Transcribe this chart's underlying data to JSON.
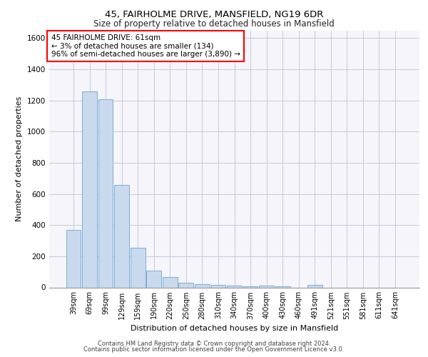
{
  "title1": "45, FAIRHOLME DRIVE, MANSFIELD, NG19 6DR",
  "title2": "Size of property relative to detached houses in Mansfield",
  "xlabel": "Distribution of detached houses by size in Mansfield",
  "ylabel": "Number of detached properties",
  "categories": [
    "39sqm",
    "69sqm",
    "99sqm",
    "129sqm",
    "159sqm",
    "190sqm",
    "220sqm",
    "250sqm",
    "280sqm",
    "310sqm",
    "340sqm",
    "370sqm",
    "400sqm",
    "430sqm",
    "460sqm",
    "491sqm",
    "521sqm",
    "551sqm",
    "581sqm",
    "611sqm",
    "641sqm"
  ],
  "values": [
    370,
    1260,
    1210,
    660,
    255,
    110,
    65,
    30,
    20,
    15,
    10,
    8,
    10,
    5,
    0,
    15,
    0,
    0,
    0,
    0,
    0
  ],
  "bar_color": "#c9d9ee",
  "bar_edge_color": "#7bafd4",
  "annotation_line1": "45 FAIRHOLME DRIVE: 61sqm",
  "annotation_line2": "← 3% of detached houses are smaller (134)",
  "annotation_line3": "96% of semi-detached houses are larger (3,890) →",
  "annotation_box_color": "white",
  "annotation_box_edge_color": "red",
  "ylim": [
    0,
    1650
  ],
  "yticks": [
    0,
    200,
    400,
    600,
    800,
    1000,
    1200,
    1400,
    1600
  ],
  "footer1": "Contains HM Land Registry data © Crown copyright and database right 2024.",
  "footer2": "Contains public sector information licensed under the Open Government Licence v3.0.",
  "bg_color": "#f5f5fa",
  "grid_color": "#c8c8dc"
}
